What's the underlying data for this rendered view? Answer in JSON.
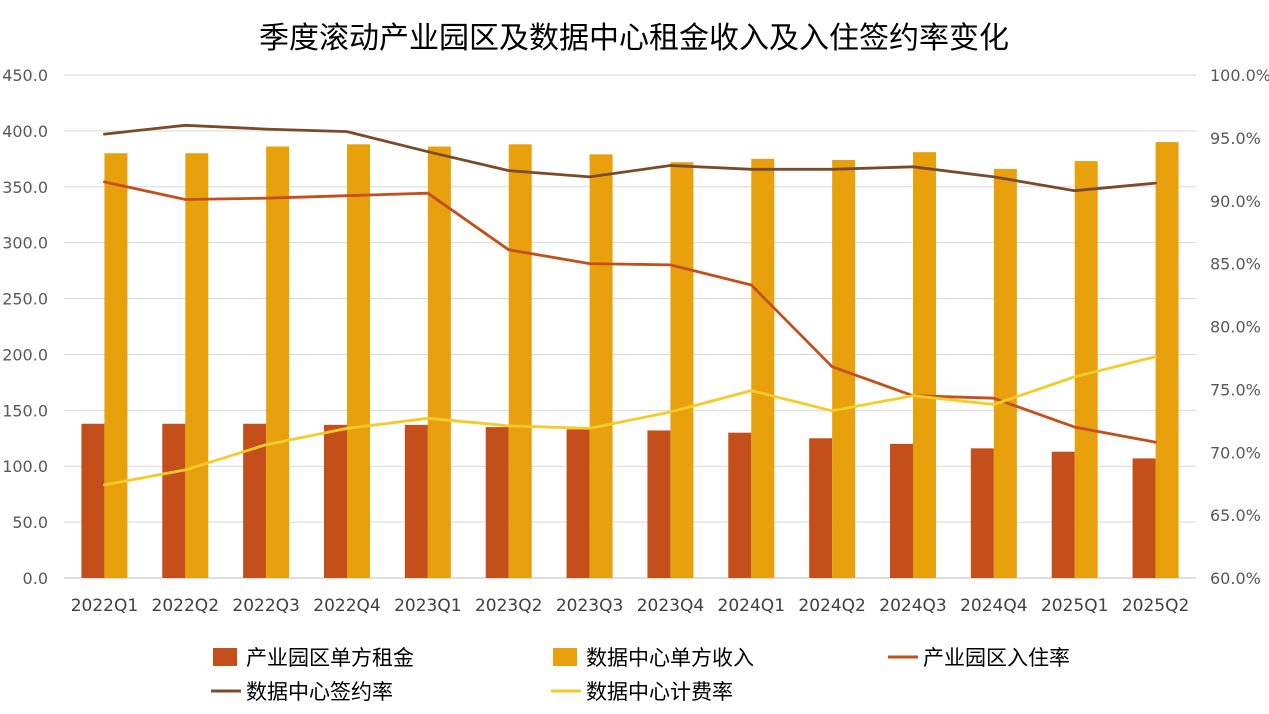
{
  "chart_data": {
    "type": "bar",
    "title": "季度滚动产业园区及数据中心租金收入及入住签约率变化",
    "categories": [
      "2022Q1",
      "2022Q2",
      "2022Q3",
      "2022Q4",
      "2023Q1",
      "2023Q2",
      "2023Q3",
      "2023Q4",
      "2024Q1",
      "2024Q2",
      "2024Q3",
      "2024Q4",
      "2025Q1",
      "2025Q2"
    ],
    "y_left": {
      "min": 0,
      "max": 450,
      "step": 50,
      "ticks": [
        "0.0",
        "50.0",
        "100.0",
        "150.0",
        "200.0",
        "250.0",
        "300.0",
        "350.0",
        "400.0",
        "450.0"
      ]
    },
    "y_right": {
      "min": 60,
      "max": 100,
      "step": 5,
      "ticks": [
        "60.0%",
        "65.0%",
        "70.0%",
        "75.0%",
        "80.0%",
        "85.0%",
        "90.0%",
        "95.0%",
        "100.0%"
      ]
    },
    "grid": true,
    "legend_position": "bottom",
    "series": [
      {
        "name": "产业园区单方租金",
        "kind": "bar",
        "axis": "left",
        "color": "#C44F1A",
        "values": [
          138,
          138,
          138,
          137,
          137,
          135,
          133,
          132,
          130,
          125,
          120,
          116,
          113,
          107
        ]
      },
      {
        "name": "数据中心单方收入",
        "kind": "bar",
        "axis": "left",
        "color": "#E8A10C",
        "values": [
          380,
          380,
          386,
          388,
          386,
          388,
          379,
          372,
          375,
          374,
          381,
          366,
          373,
          390
        ]
      },
      {
        "name": "产业园区入住率",
        "kind": "line",
        "axis": "right",
        "color": "#C44F1A",
        "values": [
          91.5,
          90.1,
          90.2,
          90.4,
          90.6,
          86.1,
          85.0,
          84.9,
          83.3,
          76.8,
          74.5,
          74.3,
          72.0,
          70.8
        ]
      },
      {
        "name": "数据中心签约率",
        "kind": "line",
        "axis": "right",
        "color": "#7B4A2A",
        "values": [
          95.3,
          96.0,
          95.7,
          95.5,
          93.9,
          92.4,
          91.9,
          92.8,
          92.5,
          92.5,
          92.7,
          91.9,
          90.8,
          91.4
        ]
      },
      {
        "name": "数据中心计费率",
        "kind": "line",
        "axis": "right",
        "color": "#F5CB2A",
        "values": [
          67.4,
          68.6,
          70.6,
          71.9,
          72.7,
          72.1,
          71.9,
          73.2,
          74.9,
          73.3,
          74.5,
          73.8,
          76.0,
          77.6
        ]
      }
    ]
  }
}
